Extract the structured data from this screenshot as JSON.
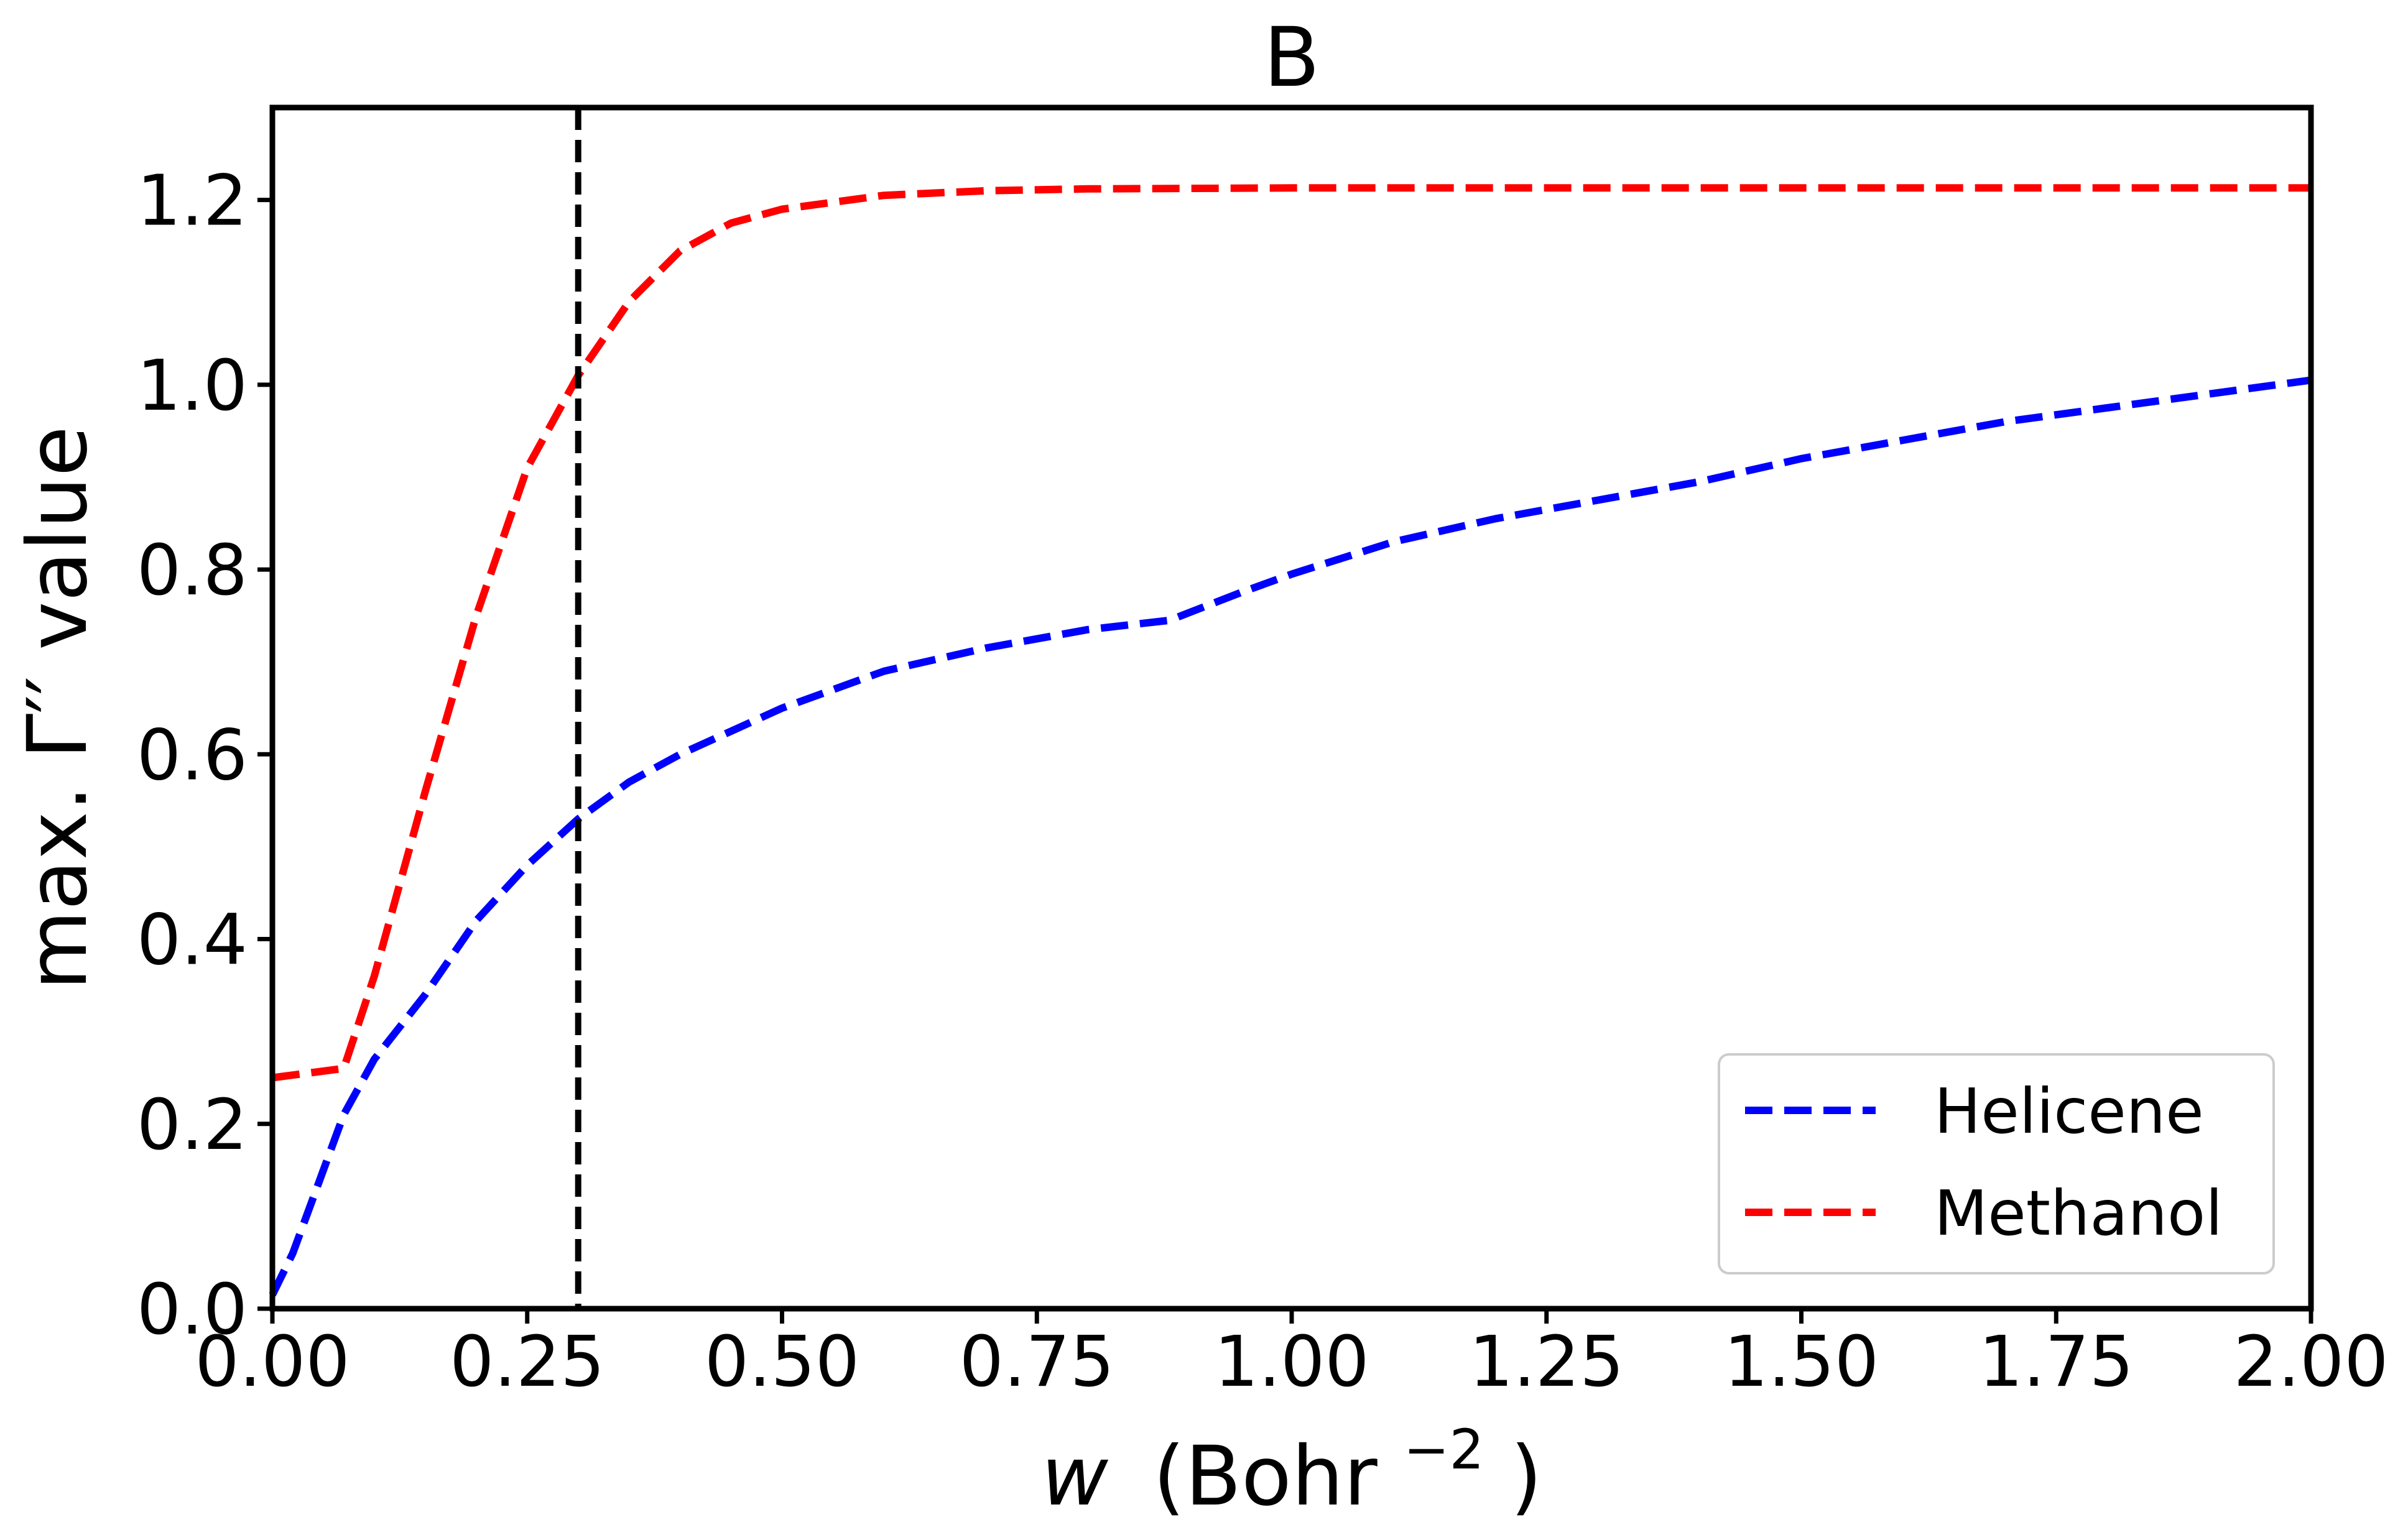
{
  "chart_data": {
    "type": "line",
    "title": "B",
    "xlabel": "w (Bohr⁻²)",
    "xlabel_parts": {
      "italic": "w",
      "pre": "(Bohr",
      "sup": "−2",
      "post": ")"
    },
    "ylabel": "max. Γ′′ value",
    "xlim": [
      0.0,
      2.0
    ],
    "ylim": [
      0.0,
      1.3
    ],
    "xticks": [
      "0.00",
      "0.25",
      "0.50",
      "0.75",
      "1.00",
      "1.25",
      "1.50",
      "1.75",
      "2.00"
    ],
    "yticks": [
      "0.0",
      "0.2",
      "0.4",
      "0.6",
      "0.8",
      "1.0",
      "1.2"
    ],
    "grid": false,
    "legend_position": "lower-right",
    "vline": {
      "x": 0.3,
      "color": "#000000",
      "style": "dashed"
    },
    "series": [
      {
        "name": "Helicene",
        "color": "#0000ff",
        "style": "dashed",
        "x": [
          0.0,
          0.02,
          0.05,
          0.07,
          0.1,
          0.15,
          0.2,
          0.25,
          0.3,
          0.35,
          0.4,
          0.5,
          0.6,
          0.7,
          0.8,
          0.88,
          0.95,
          1.0,
          1.1,
          1.2,
          1.3,
          1.4,
          1.5,
          1.6,
          1.7,
          1.8,
          1.9,
          2.0
        ],
        "y": [
          0.015,
          0.06,
          0.15,
          0.21,
          0.27,
          0.34,
          0.42,
          0.48,
          0.53,
          0.57,
          0.6,
          0.65,
          0.69,
          0.715,
          0.735,
          0.745,
          0.775,
          0.795,
          0.83,
          0.855,
          0.875,
          0.895,
          0.92,
          0.94,
          0.96,
          0.975,
          0.99,
          1.005
        ]
      },
      {
        "name": "Methanol",
        "color": "#ff0000",
        "style": "dashed",
        "x": [
          0.0,
          0.07,
          0.1,
          0.15,
          0.2,
          0.25,
          0.3,
          0.35,
          0.4,
          0.45,
          0.5,
          0.6,
          0.7,
          0.8,
          1.0,
          1.5,
          2.0
        ],
        "y": [
          0.25,
          0.26,
          0.36,
          0.56,
          0.75,
          0.91,
          1.01,
          1.09,
          1.145,
          1.175,
          1.19,
          1.205,
          1.21,
          1.212,
          1.213,
          1.213,
          1.213
        ]
      }
    ]
  }
}
